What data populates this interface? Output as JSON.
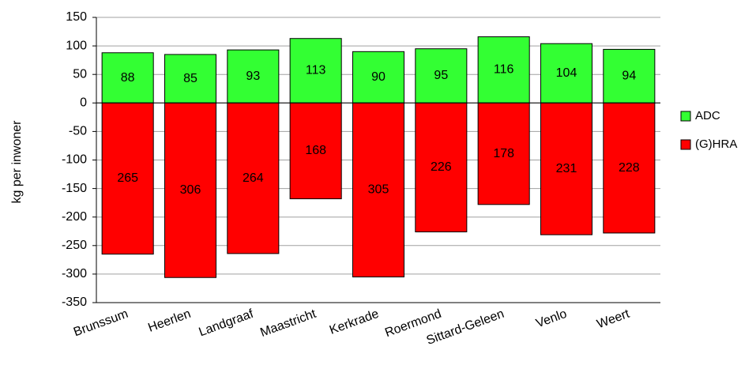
{
  "chart_data": {
    "type": "stacked_bar",
    "categories": [
      "Brunssum",
      "Heerlen",
      "Landgraaf",
      "Maastricht",
      "Kerkrade",
      "Roermond",
      "Sittard-Geleen",
      "Venlo",
      "Weert"
    ],
    "series": [
      {
        "name": "ADC",
        "color": "#33ff33",
        "values": [
          88,
          85,
          93,
          113,
          90,
          95,
          116,
          104,
          94
        ]
      },
      {
        "name": "(G)HRA",
        "color": "#ff0000",
        "values": [
          -265,
          -306,
          -264,
          -168,
          -305,
          -226,
          -178,
          -231,
          -228
        ],
        "value_labels": [
          "265",
          "306",
          "264",
          "168",
          "305",
          "226",
          "178",
          "231",
          "228"
        ]
      }
    ],
    "ylabel": "kg per inwoner",
    "ylim": [
      -350,
      150
    ],
    "yticks": [
      -350,
      -300,
      -250,
      -200,
      -150,
      -100,
      -50,
      0,
      50,
      100,
      150
    ],
    "grid": true,
    "legend": "right"
  }
}
